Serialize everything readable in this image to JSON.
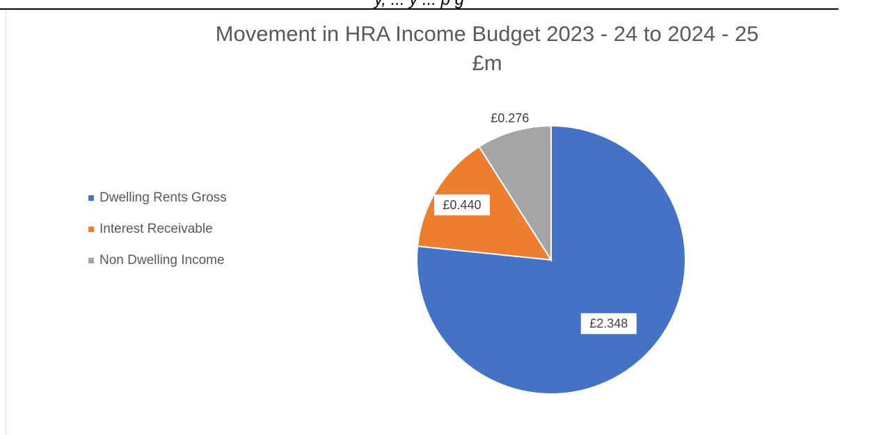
{
  "page_header_fragment": "y, ... y ... p g",
  "chart_data": {
    "type": "pie",
    "title": "Movement in HRA Income Budget 2023 - 24 to 2024 - 25",
    "subtitle": "£m",
    "categories": [
      "Dwelling Rents Gross",
      "Interest Receivable",
      "Non Dwelling Income"
    ],
    "values": [
      2.348,
      0.44,
      0.276
    ],
    "data_labels": [
      "£2.348",
      "£0.440",
      "£0.276"
    ],
    "colors": [
      "#4472C4",
      "#ED7D31",
      "#A5A5A5"
    ],
    "legend_position": "left",
    "start_angle": "12 o'clock",
    "direction": "clockwise"
  }
}
